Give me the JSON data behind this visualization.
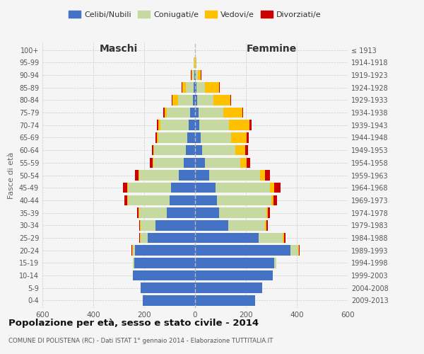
{
  "age_groups": [
    "0-4",
    "5-9",
    "10-14",
    "15-19",
    "20-24",
    "25-29",
    "30-34",
    "35-39",
    "40-44",
    "45-49",
    "50-54",
    "55-59",
    "60-64",
    "65-69",
    "70-74",
    "75-79",
    "80-84",
    "85-89",
    "90-94",
    "95-99",
    "100+"
  ],
  "birth_years": [
    "2009-2013",
    "2004-2008",
    "1999-2003",
    "1994-1998",
    "1989-1993",
    "1984-1988",
    "1979-1983",
    "1974-1978",
    "1969-1973",
    "1964-1968",
    "1959-1963",
    "1954-1958",
    "1949-1953",
    "1944-1948",
    "1939-1943",
    "1934-1938",
    "1929-1933",
    "1924-1928",
    "1919-1923",
    "1914-1918",
    "≤ 1913"
  ],
  "maschi": {
    "celibi": [
      205,
      215,
      245,
      240,
      235,
      185,
      155,
      110,
      100,
      95,
      65,
      45,
      35,
      30,
      25,
      20,
      8,
      5,
      2,
      1,
      1
    ],
    "coniugati": [
      0,
      0,
      0,
      5,
      10,
      30,
      60,
      110,
      165,
      170,
      155,
      120,
      125,
      115,
      110,
      90,
      60,
      30,
      8,
      2,
      0
    ],
    "vedovi": [
      0,
      0,
      0,
      0,
      2,
      2,
      2,
      2,
      2,
      2,
      3,
      3,
      5,
      5,
      10,
      10,
      20,
      15,
      5,
      2,
      0
    ],
    "divorziati": [
      0,
      0,
      0,
      0,
      2,
      2,
      3,
      5,
      10,
      15,
      12,
      10,
      5,
      5,
      5,
      5,
      3,
      3,
      2,
      0,
      0
    ]
  },
  "femmine": {
    "nubili": [
      235,
      265,
      305,
      310,
      375,
      250,
      130,
      95,
      85,
      80,
      55,
      38,
      28,
      22,
      18,
      15,
      8,
      5,
      2,
      1,
      1
    ],
    "coniugate": [
      0,
      0,
      0,
      10,
      30,
      95,
      145,
      185,
      215,
      215,
      200,
      140,
      130,
      120,
      115,
      95,
      65,
      35,
      10,
      2,
      0
    ],
    "vedove": [
      0,
      0,
      0,
      0,
      3,
      5,
      5,
      5,
      8,
      15,
      20,
      25,
      40,
      60,
      80,
      75,
      65,
      55,
      10,
      2,
      0
    ],
    "divorziate": [
      0,
      0,
      0,
      0,
      3,
      5,
      5,
      10,
      15,
      25,
      20,
      15,
      10,
      10,
      8,
      5,
      3,
      3,
      2,
      0,
      0
    ]
  },
  "colors": {
    "celibi_nubili": "#4472c4",
    "coniugati": "#c5d9a0",
    "vedovi": "#ffc000",
    "divorziati": "#cc0000"
  },
  "title": "Popolazione per età, sesso e stato civile - 2014",
  "subtitle": "COMUNE DI POLISTENA (RC) - Dati ISTAT 1° gennaio 2014 - Elaborazione TUTTITALIA.IT",
  "ylabel_left": "Fasce di età",
  "xlabel_left": "Maschi",
  "xlabel_right": "Femmine",
  "xlim": 600,
  "background_color": "#f5f5f5",
  "grid_color": "#cccccc"
}
